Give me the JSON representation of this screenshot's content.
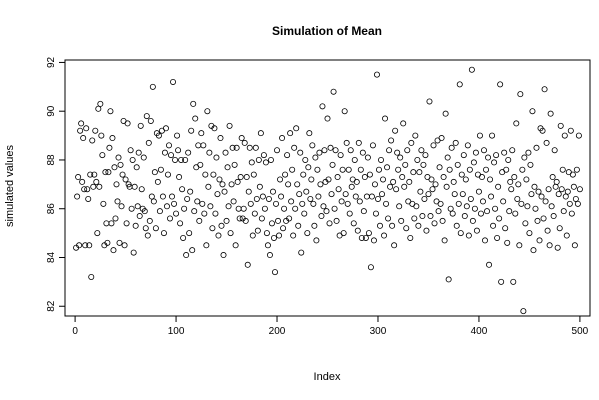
{
  "chart_data": {
    "type": "scatter",
    "title": "Simulation of Mean",
    "xlabel": "Index",
    "ylabel": "simulated values",
    "xlim": [
      -10,
      510
    ],
    "ylim": [
      81.6,
      92.1
    ],
    "xticks": [
      0,
      100,
      200,
      300,
      400,
      500
    ],
    "xtick_labels": [
      "0",
      "100",
      "200",
      "300",
      "400",
      "500"
    ],
    "yticks": [
      82,
      84,
      86,
      88,
      90,
      92
    ],
    "ytick_labels": [
      "82",
      "84",
      "86",
      "88",
      "90",
      "92"
    ],
    "grid": false,
    "legend": false,
    "marker": "open-circle",
    "marker_color": "#000000",
    "n_points": 500,
    "y_values": [
      84.4,
      86.5,
      87.3,
      84.5,
      89.2,
      89.5,
      87.1,
      88.9,
      86.8,
      84.5,
      89.3,
      86.8,
      86.4,
      84.5,
      87.4,
      83.2,
      88.8,
      86.9,
      87.4,
      89.2,
      87.1,
      85.0,
      90.1,
      86.9,
      90.3,
      89.0,
      88.2,
      86.2,
      84.5,
      87.5,
      85.4,
      84.6,
      87.5,
      88.5,
      90.0,
      85.4,
      88.9,
      84.3,
      87.7,
      85.6,
      87.0,
      86.3,
      88.1,
      84.6,
      87.8,
      86.1,
      87.4,
      89.6,
      84.5,
      87.2,
      85.4,
      89.5,
      87.0,
      86.9,
      88.4,
      86.0,
      88.0,
      84.2,
      86.9,
      85.3,
      87.7,
      86.1,
      88.3,
      85.7,
      89.4,
      86.8,
      86.0,
      88.1,
      85.9,
      85.2,
      89.8,
      84.9,
      88.7,
      85.5,
      89.6,
      86.5,
      91.0,
      86.3,
      87.5,
      85.2,
      89.1,
      87.1,
      89.0,
      85.9,
      87.6,
      89.2,
      86.5,
      85.0,
      88.3,
      89.3,
      86.1,
      87.4,
      88.6,
      85.6,
      88.2,
      86.5,
      91.2,
      86.2,
      88.0,
      85.8,
      89.0,
      88.4,
      87.3,
      85.4,
      88.0,
      86.8,
      84.8,
      86.0,
      88.0,
      84.1,
      86.4,
      88.3,
      85.0,
      86.7,
      89.2,
      84.3,
      90.3,
      85.9,
      89.7,
      87.7,
      86.3,
      88.6,
      85.5,
      87.8,
      89.1,
      86.2,
      88.6,
      85.8,
      87.4,
      84.5,
      90.0,
      86.9,
      88.3,
      86.1,
      89.4,
      85.2,
      87.4,
      89.3,
      85.8,
      88.1,
      86.6,
      84.9,
      87.2,
      88.9,
      85.3,
      87.0,
      84.1,
      86.7,
      88.3,
      85.5,
      87.7,
      86.1,
      89.4,
      85.0,
      87.0,
      88.5,
      86.3,
      87.8,
      84.5,
      88.5,
      87.1,
      86.0,
      85.6,
      87.3,
      88.9,
      85.6,
      86.0,
      88.7,
      85.5,
      87.3,
      83.7,
      86.7,
      88.5,
      86.2,
      87.9,
      84.9,
      87.4,
      85.8,
      88.5,
      86.4,
      85.1,
      88.0,
      86.9,
      89.1,
      85.6,
      86.5,
      88.2,
      86.0,
      87.9,
      85.0,
      84.5,
      86.4,
      84.1,
      88.0,
      85.4,
      86.7,
      84.8,
      83.4,
      86.2,
      88.4,
      85.5,
      84.9,
      87.2,
      86.5,
      88.9,
      85.2,
      86.0,
      87.4,
      85.5,
      88.2,
      87.0,
      85.6,
      89.1,
      86.3,
      87.6,
      84.9,
      88.5,
      86.0,
      89.3,
      87.0,
      85.3,
      86.6,
      88.3,
      84.2,
      86.2,
      87.4,
      85.8,
      88.0,
      86.7,
      85.0,
      87.7,
      89.1,
      86.4,
      87.2,
      88.6,
      86.2,
      85.3,
      88.1,
      84.7,
      87.6,
      86.5,
      88.3,
      87.0,
      85.7,
      90.2,
      86.1,
      88.4,
      87.1,
      85.9,
      89.7,
      87.2,
      85.4,
      88.5,
      86.6,
      87.8,
      90.8,
      86.0,
      88.4,
      85.5,
      87.3,
      86.8,
      84.9,
      88.2,
      86.3,
      87.6,
      85.0,
      90.0,
      86.6,
      88.7,
      86.2,
      87.6,
      85.8,
      88.4,
      86.9,
      87.2,
      85.4,
      88.0,
      86.5,
      87.1,
      85.1,
      88.7,
      86.3,
      87.6,
      84.8,
      88.3,
      85.9,
      87.3,
      84.8,
      86.5,
      88.1,
      85.0,
      87.4,
      83.6,
      86.5,
      88.6,
      84.7,
      87.0,
      85.8,
      91.5,
      86.4,
      87.6,
      85.3,
      88.0,
      86.6,
      87.2,
      84.9,
      89.7,
      86.2,
      87.7,
      85.6,
      88.4,
      86.9,
      88.8,
      85.3,
      87.1,
      84.5,
      89.2,
      86.8,
      88.3,
      87.6,
      86.1,
      88.1,
      85.5,
      87.3,
      89.5,
      86.9,
      87.8,
      85.2,
      88.4,
      86.3,
      87.1,
      84.8,
      88.7,
      86.2,
      87.5,
      85.6,
      89.0,
      86.1,
      88.0,
      85.3,
      87.5,
      86.7,
      88.4,
      85.7,
      87.8,
      86.4,
      88.2,
      85.1,
      87.3,
      86.6,
      90.4,
      85.7,
      87.2,
      86.8,
      88.6,
      85.4,
      87.0,
      86.3,
      88.8,
      85.9,
      87.7,
      86.2,
      88.9,
      85.5,
      87.3,
      84.7,
      89.9,
      86.9,
      88.1,
      83.1,
      87.6,
      86.0,
      88.5,
      85.8,
      87.1,
      86.6,
      88.7,
      85.3,
      87.8,
      86.2,
      91.1,
      85.0,
      87.4,
      86.6,
      88.2,
      85.7,
      87.2,
      86.1,
      88.6,
      84.9,
      87.6,
      86.4,
      91.7,
      85.5,
      87.9,
      86.0,
      88.3,
      85.1,
      87.4,
      86.7,
      89.0,
      85.8,
      87.3,
      86.3,
      88.4,
      84.7,
      87.6,
      85.9,
      88.1,
      83.7,
      87.2,
      86.5,
      89.0,
      85.3,
      87.9,
      86.0,
      88.2,
      84.8,
      86.9,
      85.6,
      91.1,
      83.0,
      87.5,
      86.3,
      88.3,
      85.2,
      87.6,
      84.6,
      88.0,
      85.9,
      87.1,
      86.8,
      88.4,
      83.0,
      87.3,
      85.8,
      89.5,
      86.4,
      87.0,
      84.5,
      90.7,
      86.2,
      87.6,
      81.8,
      88.1,
      85.4,
      87.2,
      86.1,
      88.3,
      85.0,
      87.8,
      86.6,
      90.0,
      84.3,
      86.9,
      86.0,
      88.5,
      85.5,
      86.7,
      84.7,
      89.3,
      86.5,
      89.2,
      85.6,
      90.9,
      86.3,
      88.7,
      85.1,
      86.8,
      84.5,
      89.9,
      86.1,
      87.3,
      85.7,
      88.4,
      86.9,
      87.1,
      84.4,
      86.6,
      85.2,
      89.4,
      86.8,
      87.6,
      85.9,
      89.0,
      86.5,
      84.9,
      86.7,
      87.5,
      86.2,
      89.2,
      85.8,
      87.4,
      86.9,
      84.5,
      86.4,
      87.6,
      86.2,
      89.0,
      86.8
    ]
  }
}
